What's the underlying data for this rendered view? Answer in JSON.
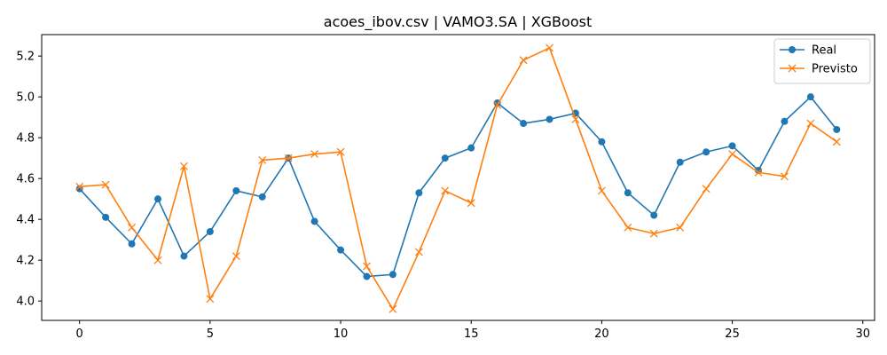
{
  "chart_data": {
    "type": "line",
    "title": "acoes_ibov.csv | VAMO3.SA | XGBoost",
    "xlabel": "",
    "ylabel": "",
    "x": [
      0,
      1,
      2,
      3,
      4,
      5,
      6,
      7,
      8,
      9,
      10,
      11,
      12,
      13,
      14,
      15,
      16,
      17,
      18,
      19,
      20,
      21,
      22,
      23,
      24,
      25,
      26,
      27,
      28,
      29
    ],
    "xlim": [
      -1.45,
      30.45
    ],
    "ylim": [
      3.905,
      5.305
    ],
    "x_ticks": [
      0,
      5,
      10,
      15,
      20,
      25,
      30
    ],
    "y_ticks": [
      4.0,
      4.2,
      4.4,
      4.6,
      4.8,
      5.0,
      5.2
    ],
    "x_tick_labels": [
      "0",
      "5",
      "10",
      "15",
      "20",
      "25",
      "30"
    ],
    "y_tick_labels": [
      "4.0",
      "4.2",
      "4.4",
      "4.6",
      "4.8",
      "5.0",
      "5.2"
    ],
    "grid": false,
    "legend_position": "top-right",
    "series": [
      {
        "name": "Real",
        "color": "#1f77b4",
        "marker": "circle",
        "values": [
          4.55,
          4.41,
          4.28,
          4.5,
          4.22,
          4.34,
          4.54,
          4.51,
          4.7,
          4.39,
          4.25,
          4.12,
          4.13,
          4.53,
          4.7,
          4.75,
          4.97,
          4.87,
          4.89,
          4.92,
          4.78,
          4.53,
          4.42,
          4.68,
          4.73,
          4.76,
          4.64,
          4.88,
          5.0,
          4.84
        ]
      },
      {
        "name": "Previsto",
        "color": "#ff7f0e",
        "marker": "x",
        "values": [
          4.56,
          4.57,
          4.36,
          4.2,
          4.66,
          4.01,
          4.22,
          4.69,
          4.7,
          4.72,
          4.73,
          4.17,
          3.96,
          4.24,
          4.54,
          4.48,
          4.96,
          5.18,
          5.24,
          4.89,
          4.54,
          4.36,
          4.33,
          4.36,
          4.55,
          4.72,
          4.63,
          4.61,
          4.87,
          4.78
        ]
      }
    ]
  }
}
